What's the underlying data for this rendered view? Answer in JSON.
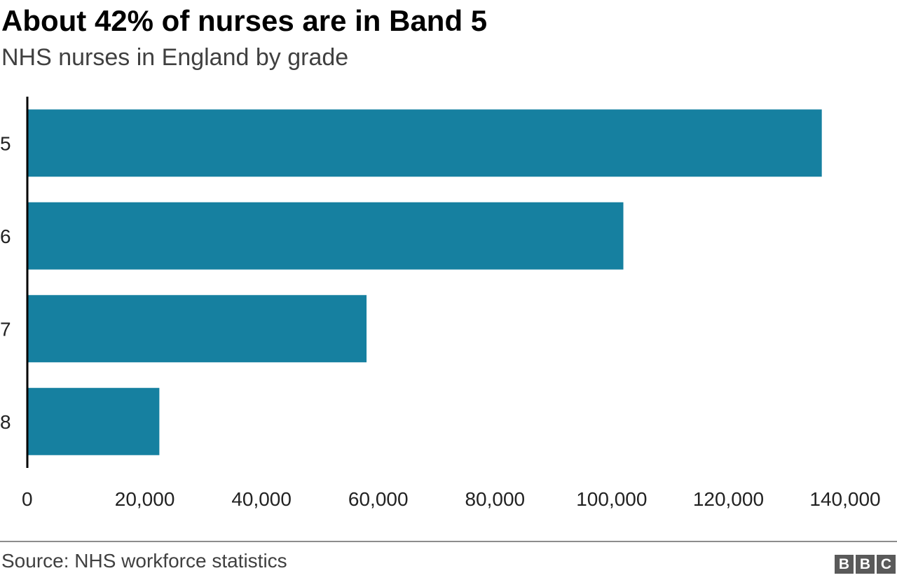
{
  "title": "About 42% of nurses are in Band 5",
  "subtitle": "NHS nurses in England by grade",
  "source": "Source: NHS workforce statistics",
  "logo": {
    "letters": [
      "B",
      "B",
      "C"
    ]
  },
  "colors": {
    "bar": "#1680a0",
    "axis": "#000000",
    "text": "#222222"
  },
  "chart_data": {
    "type": "bar",
    "orientation": "horizontal",
    "categories": [
      "5",
      "6",
      "7",
      "8"
    ],
    "values": [
      136000,
      102000,
      58000,
      22500
    ],
    "xlim": [
      0,
      140000
    ],
    "x_ticks": [
      0,
      20000,
      40000,
      60000,
      80000,
      100000,
      120000,
      140000
    ],
    "x_tick_labels": [
      "0",
      "20,000",
      "40,000",
      "60,000",
      "80,000",
      "100,000",
      "120,000",
      "140,000"
    ],
    "grid": false,
    "legend": "none",
    "xlabel": "",
    "ylabel": ""
  }
}
